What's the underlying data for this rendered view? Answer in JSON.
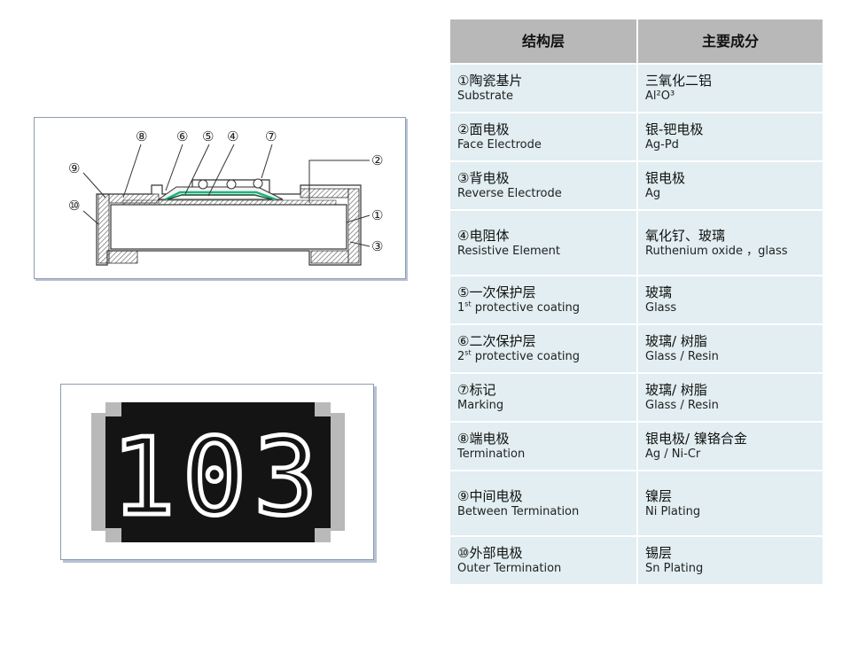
{
  "diagram": {
    "callouts": [
      "⑧",
      "⑥",
      "⑤",
      "④",
      "⑦",
      "②",
      "⑨",
      "⑩",
      "①",
      "③"
    ],
    "chip_marking": "103"
  },
  "table": {
    "headers": [
      "结构层",
      "主要成分"
    ],
    "rows": [
      {
        "num": "①",
        "name_cn": "陶瓷基片",
        "name_en": "Substrate",
        "comp_cn": "三氧化二铝",
        "comp_en": "Al²O³"
      },
      {
        "num": "②",
        "name_cn": "面电极",
        "name_en": "Face Electrode",
        "comp_cn": "银-钯电极",
        "comp_en": "Ag-Pd"
      },
      {
        "num": "③",
        "name_cn": "背电极",
        "name_en": "Reverse Electrode",
        "comp_cn": "银电极",
        "comp_en": "Ag"
      },
      {
        "num": "④",
        "name_cn": "电阻体",
        "name_en": "Resistive Element",
        "comp_cn": "氧化钌、玻璃",
        "comp_en": "Ruthenium oxide ，glass"
      },
      {
        "num": "⑤",
        "name_cn": "一次保护层",
        "name_en_sup": "st",
        "name_en_pre": "1",
        "name_en": " protective coating",
        "comp_cn": "玻璃",
        "comp_en": "Glass"
      },
      {
        "num": "⑥",
        "name_cn": "二次保护层",
        "name_en_sup": "st",
        "name_en_pre": "2",
        "name_en": " protective coating",
        "comp_cn": "玻璃/ 树脂",
        "comp_en": "Glass / Resin"
      },
      {
        "num": "⑦",
        "name_cn": "标记",
        "name_en": "Marking",
        "comp_cn": "玻璃/ 树脂",
        "comp_en": "Glass / Resin"
      },
      {
        "num": "⑧",
        "name_cn": "端电极",
        "name_en": "Termination",
        "comp_cn": "银电极/ 镍铬合金",
        "comp_en": "Ag / Ni-Cr"
      },
      {
        "num": "⑨",
        "name_cn": "中间电极",
        "name_en": "Between Termination",
        "comp_cn": "镍层",
        "comp_en": "Ni Plating"
      },
      {
        "num": "⑩",
        "name_cn": "外部电极",
        "name_en": "Outer Termination",
        "comp_cn": "锡层",
        "comp_en": "Sn Plating"
      }
    ]
  }
}
